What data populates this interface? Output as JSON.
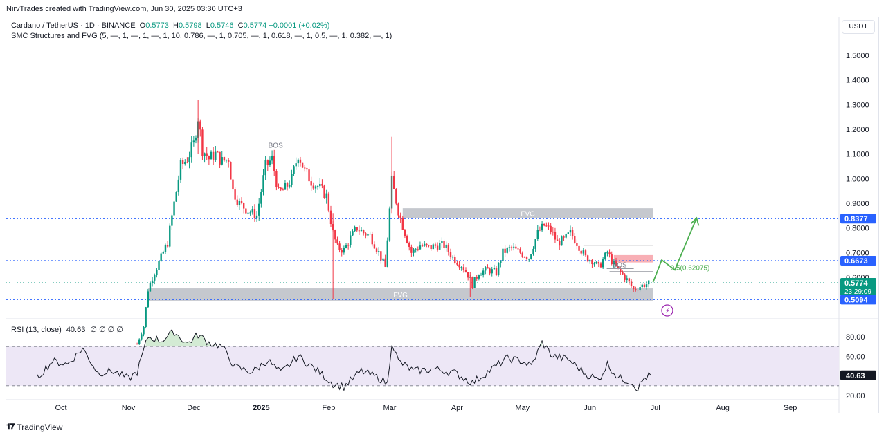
{
  "header": {
    "created_by": "NirvTrades created with TradingView.com, Jun 30, 2025 03:30 UTC+3"
  },
  "legend": {
    "symbol": "Cardano / TetherUS · 1D · BINANCE",
    "o_label": "O",
    "o_value": "0.5773",
    "h_label": "H",
    "h_value": "0.5798",
    "l_label": "L",
    "l_value": "0.5746",
    "c_label": "C",
    "c_value": "0.5774",
    "change": "+0.0001 (+0.02%)",
    "indicator": "SMC Structures and FVG (5, —, 1, —, 1, —, 1, 10, 0.786, —, 1, 0.705, —, 1, 0.618, —, 1, 0.5, —, 1, 0.382, —, 1)"
  },
  "currency_button": "USDT",
  "rsi_legend": {
    "label": "RSI (13, close)",
    "value": "40.63",
    "extra": "∅ ∅ ∅ ∅"
  },
  "branding": "TradingView",
  "colors": {
    "up": "#089981",
    "down": "#f23645",
    "level_line": "#2962ff",
    "fvg_box": "#b2b5be",
    "projection": "#4caf50",
    "rsi_band": "#ede7f6",
    "rsi_line": "#131722"
  },
  "chart_data": [
    {
      "type": "candlestick",
      "symbol": "ADA/USDT",
      "timeframe": "1D",
      "ylim": [
        0.48,
        1.62
      ],
      "y_ticks": [
        "1.5000",
        "1.4000",
        "1.3000",
        "1.2000",
        "1.1000",
        "1.0000",
        "0.9000",
        "0.8000",
        "0.7000",
        "0.6000"
      ],
      "y_tick_values": [
        1.5,
        1.4,
        1.3,
        1.2,
        1.1,
        1.0,
        0.9,
        0.8,
        0.7,
        0.6
      ],
      "x_ticks": [
        "Oct",
        "Nov",
        "Dec",
        "2025",
        "Feb",
        "Mar",
        "Apr",
        "May",
        "Jun",
        "Jul",
        "Aug",
        "Sep"
      ],
      "close_series": [
        {
          "date": "2024-11-05",
          "close": 0.33
        },
        {
          "date": "2024-11-08",
          "close": 0.4
        },
        {
          "date": "2024-11-10",
          "close": 0.55
        },
        {
          "date": "2024-11-12",
          "close": 0.6
        },
        {
          "date": "2024-11-16",
          "close": 0.68
        },
        {
          "date": "2024-11-19",
          "close": 0.74
        },
        {
          "date": "2024-11-22",
          "close": 0.9
        },
        {
          "date": "2024-11-25",
          "close": 1.05
        },
        {
          "date": "2024-11-28",
          "close": 1.08
        },
        {
          "date": "2024-12-01",
          "close": 1.14
        },
        {
          "date": "2024-12-03",
          "close": 1.25
        },
        {
          "date": "2024-12-05",
          "close": 1.12
        },
        {
          "date": "2024-12-08",
          "close": 1.08
        },
        {
          "date": "2024-12-11",
          "close": 1.1
        },
        {
          "date": "2024-12-14",
          "close": 1.07
        },
        {
          "date": "2024-12-17",
          "close": 1.08
        },
        {
          "date": "2024-12-19",
          "close": 0.95
        },
        {
          "date": "2024-12-22",
          "close": 0.9
        },
        {
          "date": "2024-12-26",
          "close": 0.87
        },
        {
          "date": "2024-12-30",
          "close": 0.85
        },
        {
          "date": "2025-01-03",
          "close": 1.05
        },
        {
          "date": "2025-01-06",
          "close": 1.08
        },
        {
          "date": "2025-01-09",
          "close": 0.94
        },
        {
          "date": "2025-01-12",
          "close": 0.96
        },
        {
          "date": "2025-01-15",
          "close": 1.0
        },
        {
          "date": "2025-01-18",
          "close": 1.1
        },
        {
          "date": "2025-01-21",
          "close": 1.03
        },
        {
          "date": "2025-01-24",
          "close": 0.99
        },
        {
          "date": "2025-01-27",
          "close": 0.97
        },
        {
          "date": "2025-01-31",
          "close": 0.93
        },
        {
          "date": "2025-02-03",
          "close": 0.78
        },
        {
          "date": "2025-02-05",
          "close": 0.72
        },
        {
          "date": "2025-02-08",
          "close": 0.71
        },
        {
          "date": "2025-02-11",
          "close": 0.76
        },
        {
          "date": "2025-02-14",
          "close": 0.8
        },
        {
          "date": "2025-02-17",
          "close": 0.78
        },
        {
          "date": "2025-02-20",
          "close": 0.77
        },
        {
          "date": "2025-02-24",
          "close": 0.7
        },
        {
          "date": "2025-02-27",
          "close": 0.64
        },
        {
          "date": "2025-03-02",
          "close": 0.99
        },
        {
          "date": "2025-03-03",
          "close": 0.95
        },
        {
          "date": "2025-03-05",
          "close": 0.87
        },
        {
          "date": "2025-03-08",
          "close": 0.78
        },
        {
          "date": "2025-03-11",
          "close": 0.7
        },
        {
          "date": "2025-03-15",
          "close": 0.73
        },
        {
          "date": "2025-03-19",
          "close": 0.72
        },
        {
          "date": "2025-03-23",
          "close": 0.73
        },
        {
          "date": "2025-03-26",
          "close": 0.73
        },
        {
          "date": "2025-03-30",
          "close": 0.68
        },
        {
          "date": "2025-04-03",
          "close": 0.65
        },
        {
          "date": "2025-04-06",
          "close": 0.61
        },
        {
          "date": "2025-04-08",
          "close": 0.57
        },
        {
          "date": "2025-04-11",
          "close": 0.62
        },
        {
          "date": "2025-04-15",
          "close": 0.63
        },
        {
          "date": "2025-04-19",
          "close": 0.62
        },
        {
          "date": "2025-04-22",
          "close": 0.7
        },
        {
          "date": "2025-04-26",
          "close": 0.72
        },
        {
          "date": "2025-04-30",
          "close": 0.7
        },
        {
          "date": "2025-05-04",
          "close": 0.68
        },
        {
          "date": "2025-05-08",
          "close": 0.78
        },
        {
          "date": "2025-05-11",
          "close": 0.81
        },
        {
          "date": "2025-05-14",
          "close": 0.79
        },
        {
          "date": "2025-05-17",
          "close": 0.74
        },
        {
          "date": "2025-05-20",
          "close": 0.75
        },
        {
          "date": "2025-05-23",
          "close": 0.78
        },
        {
          "date": "2025-05-26",
          "close": 0.74
        },
        {
          "date": "2025-05-30",
          "close": 0.68
        },
        {
          "date": "2025-06-02",
          "close": 0.67
        },
        {
          "date": "2025-06-05",
          "close": 0.64
        },
        {
          "date": "2025-06-09",
          "close": 0.7
        },
        {
          "date": "2025-06-12",
          "close": 0.65
        },
        {
          "date": "2025-06-15",
          "close": 0.62
        },
        {
          "date": "2025-06-18",
          "close": 0.59
        },
        {
          "date": "2025-06-21",
          "close": 0.55
        },
        {
          "date": "2025-06-23",
          "close": 0.56
        },
        {
          "date": "2025-06-26",
          "close": 0.57
        },
        {
          "date": "2025-06-29",
          "close": 0.5774
        }
      ],
      "price_labels": [
        {
          "value": 0.8377,
          "text": "0.8377",
          "color": "#2962ff"
        },
        {
          "value": 0.6673,
          "text": "0.6673",
          "color": "#2962ff"
        },
        {
          "value": 0.5774,
          "text": "0.5774",
          "sub": "23:29:09",
          "color": "#089981"
        },
        {
          "value": 0.5094,
          "text": "0.5094",
          "color": "#2962ff"
        }
      ],
      "horizontal_levels": [
        0.8377,
        0.6673,
        0.5094
      ],
      "fvg_zones": [
        {
          "label": "FVG",
          "from": "2025-03-07",
          "to": "2025-06-30",
          "top": 0.88,
          "bottom": 0.84
        },
        {
          "label": "FVG",
          "from": "2024-11-10",
          "to": "2025-06-30",
          "top": 0.555,
          "bottom": 0.505
        }
      ],
      "bos_labels": [
        {
          "label": "BOS",
          "date": "2025-01-03",
          "value": 1.12
        },
        {
          "label": "BOS",
          "date": "2025-06-10",
          "value": 0.635
        }
      ],
      "fib_label": "0.5(0.62075)",
      "fib_value": 0.62075,
      "projection": [
        {
          "date": "2025-06-30",
          "value": 0.58
        },
        {
          "date": "2025-07-04",
          "value": 0.67
        },
        {
          "date": "2025-07-10",
          "value": 0.63
        },
        {
          "date": "2025-07-20",
          "value": 0.84
        }
      ]
    },
    {
      "type": "line",
      "title": "RSI (13, close)",
      "ylim": [
        15,
        95
      ],
      "y_ticks": [
        "80.00",
        "60.00",
        "20.00"
      ],
      "y_tick_values": [
        80,
        60,
        20
      ],
      "band": [
        30,
        70
      ],
      "last_value": "40.63",
      "series": [
        {
          "date": "2024-09-20",
          "value": 38
        },
        {
          "date": "2024-09-27",
          "value": 55
        },
        {
          "date": "2024-10-04",
          "value": 52
        },
        {
          "date": "2024-10-11",
          "value": 68
        },
        {
          "date": "2024-10-18",
          "value": 43
        },
        {
          "date": "2024-10-25",
          "value": 45
        },
        {
          "date": "2024-11-01",
          "value": 37
        },
        {
          "date": "2024-11-05",
          "value": 44
        },
        {
          "date": "2024-11-10",
          "value": 80
        },
        {
          "date": "2024-11-16",
          "value": 76
        },
        {
          "date": "2024-11-22",
          "value": 85
        },
        {
          "date": "2024-11-28",
          "value": 73
        },
        {
          "date": "2024-12-03",
          "value": 82
        },
        {
          "date": "2024-12-08",
          "value": 74
        },
        {
          "date": "2024-12-14",
          "value": 70
        },
        {
          "date": "2024-12-20",
          "value": 49
        },
        {
          "date": "2024-12-28",
          "value": 44
        },
        {
          "date": "2025-01-04",
          "value": 56
        },
        {
          "date": "2025-01-10",
          "value": 43
        },
        {
          "date": "2025-01-18",
          "value": 60
        },
        {
          "date": "2025-01-27",
          "value": 45
        },
        {
          "date": "2025-02-03",
          "value": 32
        },
        {
          "date": "2025-02-08",
          "value": 29
        },
        {
          "date": "2025-02-16",
          "value": 45
        },
        {
          "date": "2025-02-24",
          "value": 38
        },
        {
          "date": "2025-02-28",
          "value": 32
        },
        {
          "date": "2025-03-02",
          "value": 75
        },
        {
          "date": "2025-03-05",
          "value": 55
        },
        {
          "date": "2025-03-12",
          "value": 45
        },
        {
          "date": "2025-03-22",
          "value": 47
        },
        {
          "date": "2025-03-31",
          "value": 43
        },
        {
          "date": "2025-04-08",
          "value": 33
        },
        {
          "date": "2025-04-15",
          "value": 44
        },
        {
          "date": "2025-04-24",
          "value": 58
        },
        {
          "date": "2025-05-01",
          "value": 55
        },
        {
          "date": "2025-05-05",
          "value": 50
        },
        {
          "date": "2025-05-10",
          "value": 74
        },
        {
          "date": "2025-05-15",
          "value": 60
        },
        {
          "date": "2025-05-22",
          "value": 57
        },
        {
          "date": "2025-05-30",
          "value": 42
        },
        {
          "date": "2025-06-05",
          "value": 36
        },
        {
          "date": "2025-06-09",
          "value": 52
        },
        {
          "date": "2025-06-14",
          "value": 38
        },
        {
          "date": "2025-06-20",
          "value": 34
        },
        {
          "date": "2025-06-23",
          "value": 27
        },
        {
          "date": "2025-06-26",
          "value": 38
        },
        {
          "date": "2025-06-29",
          "value": 40.63
        }
      ]
    }
  ]
}
